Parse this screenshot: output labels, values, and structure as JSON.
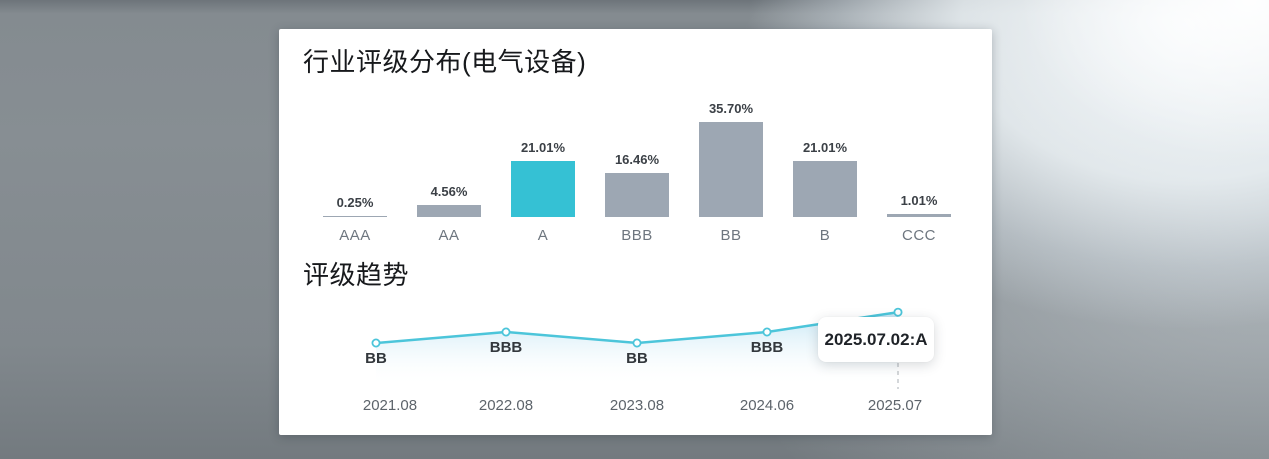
{
  "colors": {
    "accent_teal": "#35C1D4",
    "bar_gray": "#9DA7B3",
    "trend_line": "#4CC5DA",
    "area_top": "#BEE3F3",
    "dashed_guide": "#C6CACD",
    "card_background": "#FFFFFF"
  },
  "chart_data": [
    {
      "type": "bar",
      "title": "行业评级分布(电气设备)",
      "categories": [
        "AAA",
        "AA",
        "A",
        "BBB",
        "BB",
        "B",
        "CCC"
      ],
      "values": [
        0.25,
        4.56,
        21.01,
        16.46,
        35.7,
        21.01,
        1.01
      ],
      "value_labels": [
        "0.25%",
        "4.56%",
        "21.01%",
        "16.46%",
        "35.70%",
        "21.01%",
        "1.01%"
      ],
      "highlighted_category": "A",
      "bar_color": "#9DA7B3",
      "highlight_color": "#35C1D4",
      "xlabel": "",
      "ylabel": "",
      "value_unit": "%",
      "ylim": [
        0,
        40
      ],
      "grid": false,
      "legend": false
    },
    {
      "type": "line",
      "title": "评级趋势",
      "x": [
        "2021.08",
        "2022.08",
        "2023.08",
        "2024.06",
        "2025.07"
      ],
      "ratings": [
        "BB",
        "BBB",
        "BB",
        "BBB",
        "A"
      ],
      "point_labels": [
        "BB",
        "BBB",
        "BB",
        "BBB",
        ""
      ],
      "tooltip": "2025.07.02:A",
      "tooltip_point": "2025.07",
      "line_color": "#4CC5DA",
      "area_gradient_top": "#BEE3F3",
      "rating_levels": {
        "BB": 0,
        "BBB": 1,
        "A": 2.8
      },
      "grid": false,
      "legend": false
    }
  ]
}
